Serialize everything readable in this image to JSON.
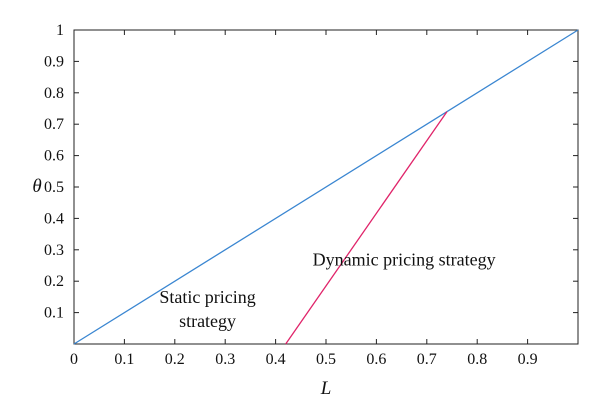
{
  "chart_data": {
    "type": "line",
    "xlabel": "L",
    "ylabel": "θ",
    "xlim": [
      0,
      1
    ],
    "ylim": [
      0,
      1
    ],
    "x_ticks": [
      "0",
      "0.1",
      "0.2",
      "0.3",
      "0.4",
      "0.5",
      "0.6",
      "0.7",
      "0.8",
      "0.9"
    ],
    "y_ticks": [
      "0.1",
      "0.2",
      "0.3",
      "0.4",
      "0.5",
      "0.6",
      "0.7",
      "0.8",
      "0.9",
      "1"
    ],
    "grid": false,
    "series": [
      {
        "color": "#3a86d1",
        "points": [
          [
            0,
            0
          ],
          [
            1,
            1
          ]
        ]
      },
      {
        "color": "#e0246a",
        "points": [
          [
            0.42,
            0
          ],
          [
            0.74,
            0.74
          ]
        ]
      }
    ],
    "annotations": [
      {
        "lines": [
          "Static pricing",
          "strategy"
        ],
        "x": 0.265,
        "y": 0.13
      },
      {
        "lines": [
          "Dynamic pricing strategy"
        ],
        "x": 0.655,
        "y": 0.25
      }
    ]
  }
}
